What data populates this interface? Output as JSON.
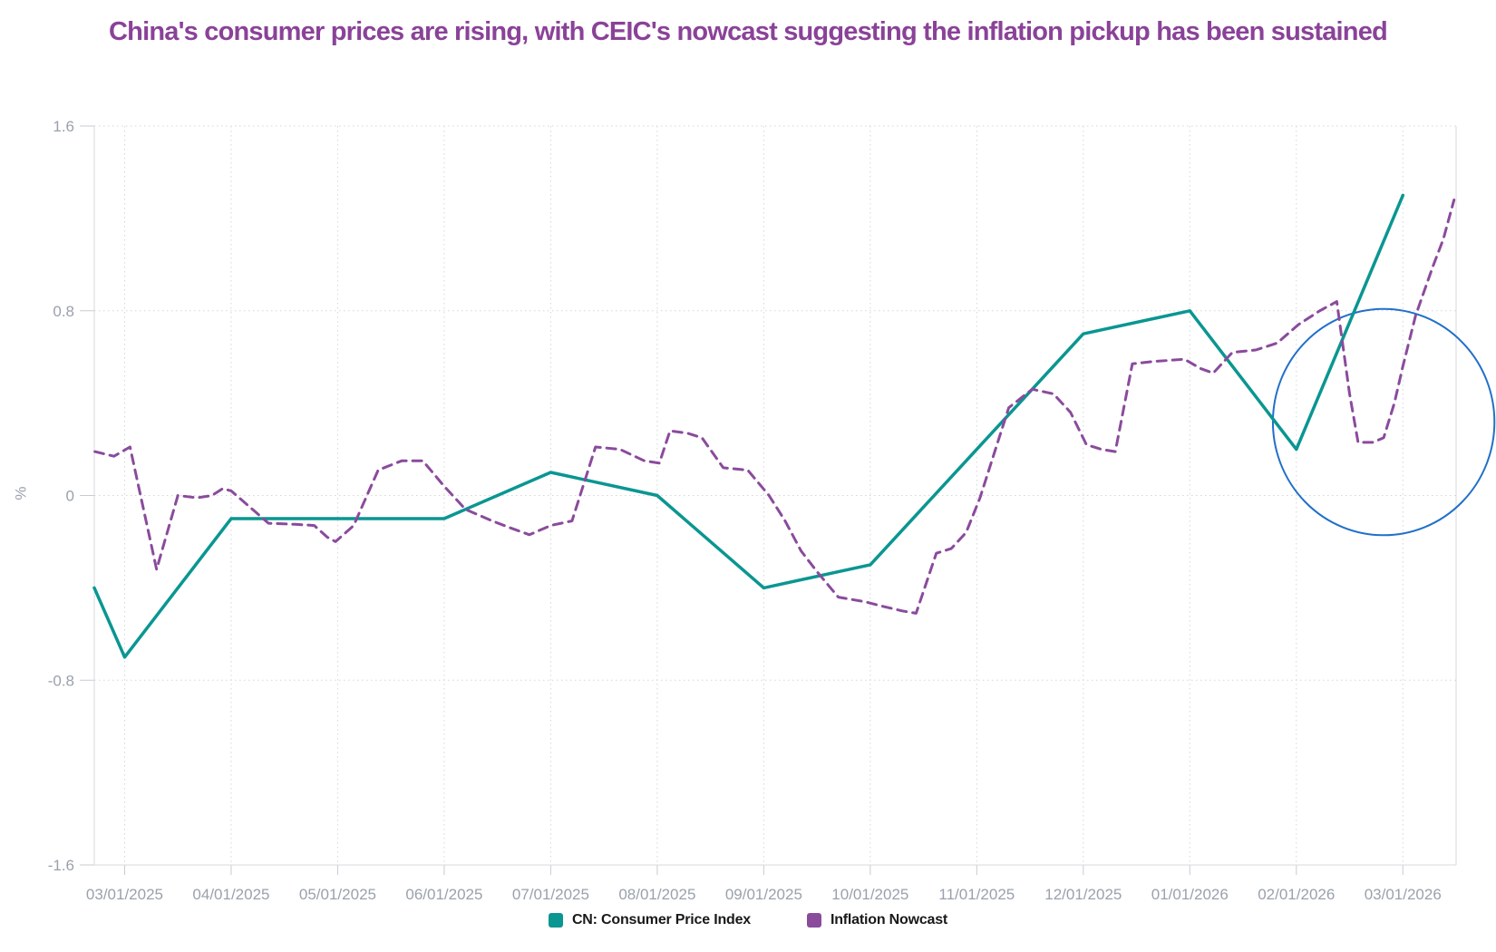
{
  "header": {
    "title": "China's consumer prices are rising, with CEIC's nowcast suggesting the inflation pickup has been sustained",
    "title_color": "#8a4298"
  },
  "palette": {
    "background": "#ffffff",
    "axis_line": "#d8dade",
    "grid_dots": "#d4d6da",
    "tick_mark": "#c8cbd0",
    "tick_label": "#9aa1ac",
    "legend_text": "#191919"
  },
  "chart_data": {
    "type": "line",
    "title": "China's consumer prices are rising, with CEIC's nowcast suggesting the inflation pickup has been sustained",
    "xlabel": "",
    "ylabel": "%",
    "grid": true,
    "legend_position": "bottom",
    "x_unit": "months since 03/01/2025",
    "x_domain_months": [
      -0.285,
      12.5
    ],
    "y_domain": [
      -1.6,
      1.6
    ],
    "x_tick_labels": [
      "03/01/2025",
      "04/01/2025",
      "05/01/2025",
      "06/01/2025",
      "07/01/2025",
      "08/01/2025",
      "09/01/2025",
      "10/01/2025",
      "11/01/2025",
      "12/01/2025",
      "01/01/2026",
      "02/01/2026",
      "03/01/2026"
    ],
    "y_ticks": [
      {
        "value": 1.6,
        "label": "1.6"
      },
      {
        "value": 0.8,
        "label": "0.8"
      },
      {
        "value": 0,
        "label": "0"
      },
      {
        "value": -0.8,
        "label": "-0.8"
      },
      {
        "value": -1.6,
        "label": "-1.6"
      }
    ],
    "series": [
      {
        "name": "CN: Consumer Price Index",
        "color": "#0a9691",
        "style": "solid",
        "width": 3.5,
        "points": [
          [
            -0.285,
            -0.4
          ],
          [
            0,
            -0.7
          ],
          [
            1,
            -0.1
          ],
          [
            2,
            -0.1
          ],
          [
            3,
            -0.1
          ],
          [
            4,
            0.1
          ],
          [
            5,
            0.0
          ],
          [
            6,
            -0.4
          ],
          [
            7,
            -0.3
          ],
          [
            8,
            0.2
          ],
          [
            9,
            0.7
          ],
          [
            10,
            0.8
          ],
          [
            11,
            0.2
          ],
          [
            12,
            1.3
          ]
        ]
      },
      {
        "name": "Inflation Nowcast",
        "color": "#8a4b9c",
        "style": "dashed",
        "width": 3,
        "points": [
          [
            -0.28,
            0.19
          ],
          [
            -0.1,
            0.17
          ],
          [
            0.05,
            0.21
          ],
          [
            0.3,
            -0.32
          ],
          [
            0.5,
            0.0
          ],
          [
            0.68,
            -0.01
          ],
          [
            0.82,
            0.0
          ],
          [
            0.92,
            0.03
          ],
          [
            1.0,
            0.02
          ],
          [
            1.2,
            -0.06
          ],
          [
            1.35,
            -0.12
          ],
          [
            1.6,
            -0.125
          ],
          [
            1.78,
            -0.13
          ],
          [
            1.9,
            -0.18
          ],
          [
            1.98,
            -0.2
          ],
          [
            2.15,
            -0.13
          ],
          [
            2.38,
            0.11
          ],
          [
            2.6,
            0.15
          ],
          [
            2.8,
            0.15
          ],
          [
            3.0,
            0.04
          ],
          [
            3.2,
            -0.06
          ],
          [
            3.45,
            -0.11
          ],
          [
            3.62,
            -0.14
          ],
          [
            3.8,
            -0.17
          ],
          [
            4.0,
            -0.13
          ],
          [
            4.2,
            -0.11
          ],
          [
            4.42,
            0.21
          ],
          [
            4.65,
            0.2
          ],
          [
            4.88,
            0.15
          ],
          [
            5.02,
            0.14
          ],
          [
            5.12,
            0.28
          ],
          [
            5.28,
            0.27
          ],
          [
            5.42,
            0.25
          ],
          [
            5.62,
            0.12
          ],
          [
            5.85,
            0.11
          ],
          [
            6.05,
            0.0
          ],
          [
            6.2,
            -0.11
          ],
          [
            6.35,
            -0.24
          ],
          [
            6.5,
            -0.33
          ],
          [
            6.7,
            -0.44
          ],
          [
            6.95,
            -0.46
          ],
          [
            7.12,
            -0.48
          ],
          [
            7.3,
            -0.5
          ],
          [
            7.43,
            -0.51
          ],
          [
            7.62,
            -0.25
          ],
          [
            7.76,
            -0.23
          ],
          [
            7.9,
            -0.16
          ],
          [
            8.03,
            -0.01
          ],
          [
            8.3,
            0.38
          ],
          [
            8.52,
            0.46
          ],
          [
            8.72,
            0.44
          ],
          [
            8.88,
            0.36
          ],
          [
            9.03,
            0.22
          ],
          [
            9.17,
            0.2
          ],
          [
            9.3,
            0.19
          ],
          [
            9.46,
            0.57
          ],
          [
            9.65,
            0.58
          ],
          [
            9.95,
            0.59
          ],
          [
            10.1,
            0.55
          ],
          [
            10.22,
            0.53
          ],
          [
            10.4,
            0.62
          ],
          [
            10.62,
            0.63
          ],
          [
            10.82,
            0.66
          ],
          [
            11.02,
            0.74
          ],
          [
            11.22,
            0.8
          ],
          [
            11.38,
            0.84
          ],
          [
            11.5,
            0.44
          ],
          [
            11.58,
            0.23
          ],
          [
            11.72,
            0.23
          ],
          [
            11.82,
            0.25
          ],
          [
            11.92,
            0.4
          ],
          [
            12.0,
            0.56
          ],
          [
            12.12,
            0.78
          ],
          [
            12.28,
            0.99
          ],
          [
            12.38,
            1.11
          ],
          [
            12.48,
            1.28
          ]
        ]
      }
    ],
    "annotation": {
      "type": "ellipse",
      "color": "#2070c9",
      "stroke_width": 2,
      "center_month": 11.82,
      "center_value": 0.318,
      "rx_months": 1.04,
      "ry_value": 0.49
    }
  },
  "legend": {
    "items": [
      {
        "label": "CN: Consumer Price Index",
        "color": "#0a9691"
      },
      {
        "label": "Inflation Nowcast",
        "color": "#8a4b9c"
      }
    ]
  }
}
